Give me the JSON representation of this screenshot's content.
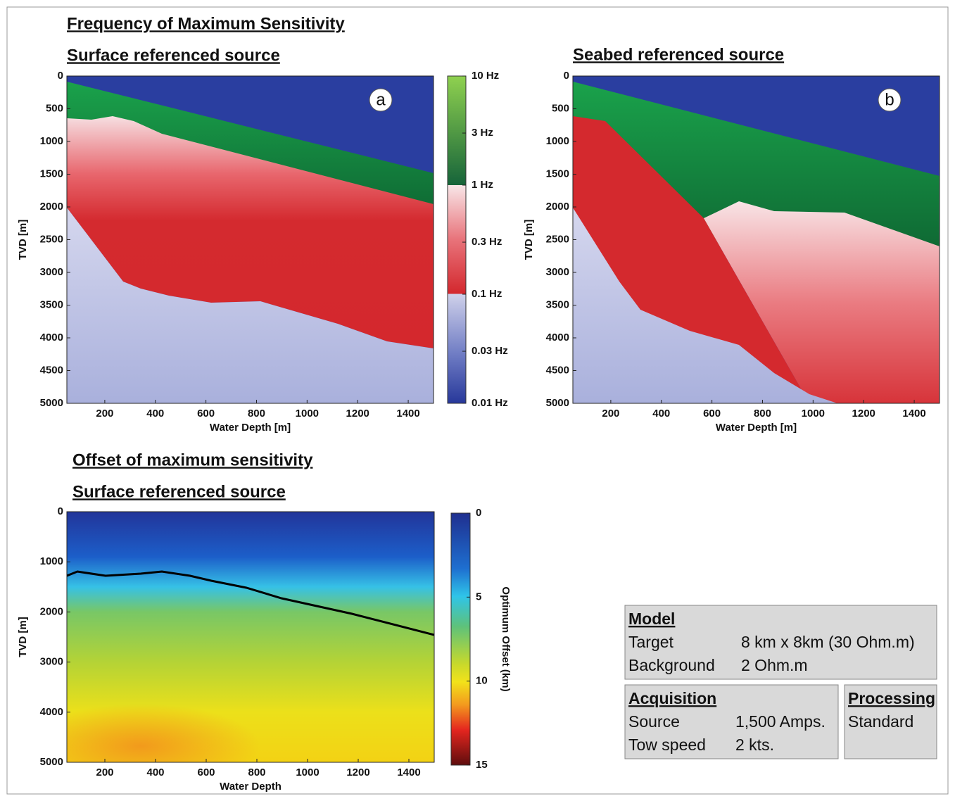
{
  "figure_title": "Frequency of Maximum Sensitivity",
  "section_title": "Offset of maximum sensitivity",
  "chart_data": [
    {
      "type": "heatmap",
      "subtitle": "Surface referenced source",
      "panel_label": "a",
      "xlabel": "Water Depth [m]",
      "ylabel": "TVD [m]",
      "xlim": [
        50,
        1500
      ],
      "xticks": [
        200,
        400,
        600,
        800,
        1000,
        1200,
        1400
      ],
      "ylim": [
        5000,
        0
      ],
      "yticks": [
        0,
        500,
        1000,
        1500,
        2000,
        2500,
        3000,
        3500,
        4000,
        4500,
        5000
      ],
      "colorbar": {
        "log": true,
        "clim": [
          10,
          0.01
        ],
        "ticks": [
          {
            "value": 10,
            "label": "10 Hz"
          },
          {
            "value": 3,
            "label": "3 Hz"
          },
          {
            "value": 1,
            "label": "1 Hz"
          },
          {
            "value": 0.3,
            "label": "0.3 Hz"
          },
          {
            "value": 0.1,
            "label": "0.1  Hz"
          },
          {
            "value": 0.03,
            "label": "0.03 Hz"
          },
          {
            "value": 0.01,
            "label": "0.01 Hz"
          }
        ]
      }
    },
    {
      "type": "heatmap",
      "subtitle": "Seabed referenced source",
      "panel_label": "b",
      "xlabel": "Water Depth [m]",
      "ylabel": "TVD [m]",
      "xlim": [
        50,
        1500
      ],
      "xticks": [
        200,
        400,
        600,
        800,
        1000,
        1200,
        1400
      ],
      "ylim": [
        5000,
        0
      ],
      "yticks": [
        0,
        500,
        1000,
        1500,
        2000,
        2500,
        3000,
        3500,
        4000,
        4500,
        5000
      ]
    },
    {
      "type": "heatmap",
      "subtitle": "Surface referenced source",
      "xlabel": "Water Depth",
      "ylabel": "TVD [m]",
      "xlim": [
        50,
        1500
      ],
      "xticks": [
        200,
        400,
        600,
        800,
        1000,
        1200,
        1400
      ],
      "ylim": [
        5000,
        0
      ],
      "yticks": [
        0,
        1000,
        2000,
        3000,
        4000,
        5000
      ],
      "colorbar": {
        "log": false,
        "clim": [
          0,
          15
        ],
        "ticks": [
          0,
          5,
          10,
          15
        ],
        "label": "Optimum Offset (km)"
      }
    }
  ],
  "info": {
    "model": {
      "heading": "Model",
      "rows": [
        [
          "Target",
          "8 km x 8km (30 Ohm.m)"
        ],
        [
          "Background",
          "2 Ohm.m"
        ]
      ]
    },
    "acquisition": {
      "heading": "Acquisition",
      "rows": [
        [
          "Source",
          "1,500 Amps."
        ],
        [
          "Tow speed",
          "2 kts."
        ]
      ]
    },
    "processing": {
      "heading": "Processing",
      "rows": [
        [
          "Standard"
        ]
      ]
    }
  }
}
